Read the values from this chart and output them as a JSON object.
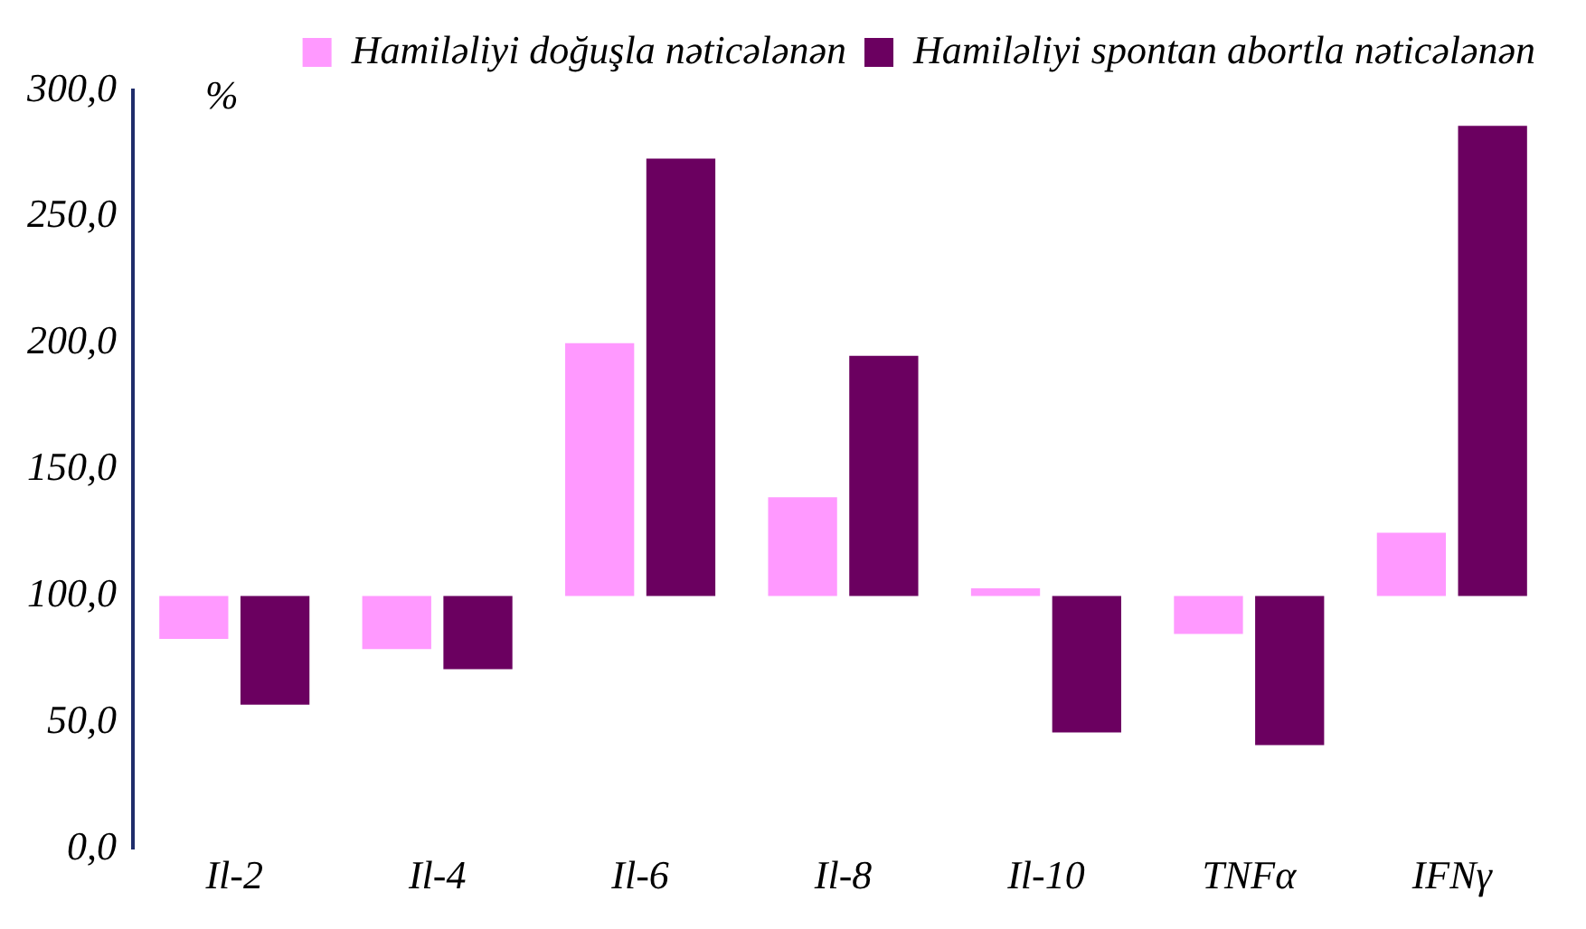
{
  "chart_data": {
    "type": "bar",
    "ylabel": "%",
    "categories": [
      "Il-2",
      "Il-4",
      "Il-6",
      "Il-8",
      "Il-10",
      "TNFα",
      "IFNγ"
    ],
    "series": [
      {
        "name": "Hamiləliyi doğuşla nəticələnən",
        "color": "#ff99ff",
        "base": [
          100,
          100,
          100,
          100,
          100,
          100,
          100
        ],
        "values": [
          -17,
          -21,
          100,
          39,
          3,
          -15,
          25
        ]
      },
      {
        "name": "Hamiləliyi spontan abortla nəticələnən",
        "color": "#6b0060",
        "base": [
          100,
          100,
          100,
          100,
          100,
          100,
          100
        ],
        "values": [
          -43,
          -29,
          173,
          95,
          -54,
          -59,
          186
        ]
      }
    ],
    "ylim": [
      0,
      300
    ],
    "yticks": [
      {
        "value": 0,
        "label": "0,0"
      },
      {
        "value": 50,
        "label": "50,0"
      },
      {
        "value": 100,
        "label": "100,0"
      },
      {
        "value": 150,
        "label": "150,0"
      },
      {
        "value": 200,
        "label": "200,0"
      },
      {
        "value": 250,
        "label": "250,0"
      },
      {
        "value": 300,
        "label": "300,0"
      }
    ],
    "legend": "top right",
    "grid": false
  }
}
